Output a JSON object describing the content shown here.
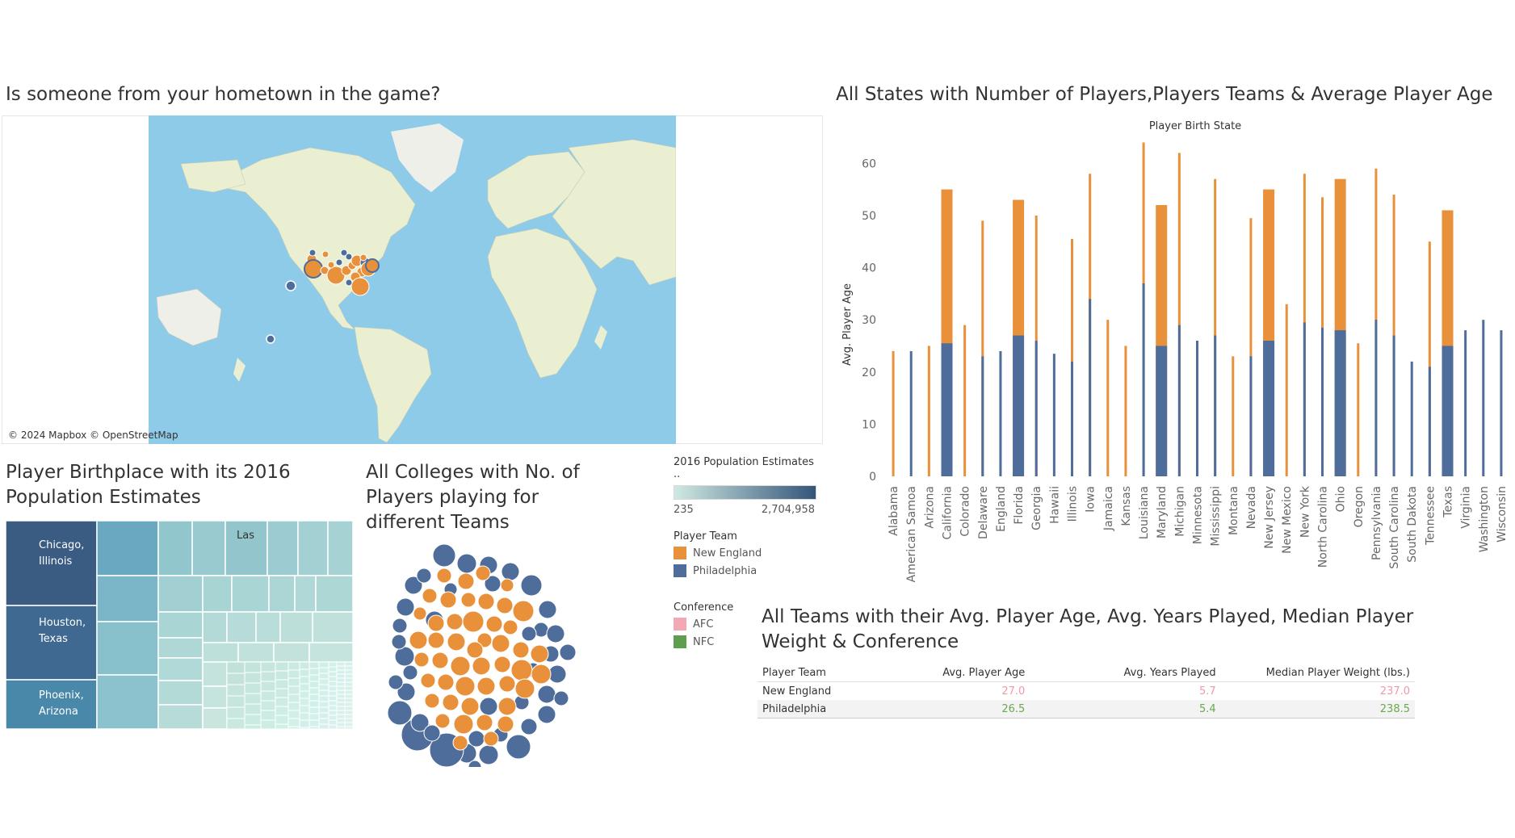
{
  "map_section": {
    "title": "Is someone from your hometown in the game?",
    "credit": "© 2024 Mapbox © OpenStreetMap",
    "colors": {
      "ocean": "#8ecbe9",
      "land": "#e9efd0",
      "ice": "#efefea"
    }
  },
  "bar_section": {
    "title": "All States with Number of Players,Players Teams & Average Player Age"
  },
  "chart_data": {
    "type": "bar",
    "title": "Player Birth State",
    "ylabel": "Avg. Player Age",
    "ylim": [
      0,
      65
    ],
    "yticks": [
      0,
      10,
      20,
      30,
      40,
      50,
      60
    ],
    "categories": [
      "Alabama",
      "American Samoa",
      "Arizona",
      "California",
      "Colorado",
      "Delaware",
      "England",
      "Florida",
      "Georgia",
      "Hawaii",
      "Illinois",
      "Iowa",
      "Jamaica",
      "Kansas",
      "Louisiana",
      "Maryland",
      "Michigan",
      "Minnesota",
      "Mississippi",
      "Montana",
      "Nevada",
      "New Jersey",
      "New Mexico",
      "New York",
      "North Carolina",
      "Ohio",
      "Oregon",
      "Pennsylvania",
      "South Carolina",
      "South Dakota",
      "Tennessee",
      "Texas",
      "Virginia",
      "Washington",
      "Wisconsin"
    ],
    "series": [
      {
        "name": "New England",
        "color": "#e8913a",
        "values": [
          24,
          null,
          25,
          55,
          29,
          49,
          null,
          53,
          50,
          null,
          45.5,
          58,
          30,
          25,
          64,
          52,
          62,
          null,
          57,
          23,
          49.5,
          55,
          33,
          58,
          53.5,
          57,
          25.5,
          59,
          54,
          null,
          45,
          51,
          null,
          null,
          null
        ]
      },
      {
        "name": "Philadelphia",
        "color": "#4e6d9b",
        "values": [
          null,
          24,
          null,
          25.5,
          null,
          23,
          24,
          27,
          26,
          23.5,
          22,
          34,
          null,
          null,
          37,
          25,
          29,
          26,
          27,
          null,
          23,
          26,
          null,
          29.5,
          28.5,
          28,
          null,
          30,
          27,
          22,
          21,
          25,
          28,
          30,
          28
        ]
      }
    ],
    "thick": [
      "California",
      "Florida",
      "New Jersey",
      "Ohio",
      "Texas",
      "Maryland"
    ]
  },
  "treemap_section": {
    "title_line1": "Player Birthplace with its 2016",
    "title_line2": "Population Estimates",
    "labels": {
      "chicago": "Chicago,\nIllinois",
      "houston": "Houston,\nTexas",
      "phoenix": "Phoenix,\nArizona",
      "las": "Las"
    }
  },
  "bubble_section": {
    "title_line1": "All Colleges with No. of",
    "title_line2": "Players playing for",
    "title_line3": "different Teams"
  },
  "legends": {
    "population": {
      "title": "2016 Population Estimates ..",
      "min": "235",
      "max": "2,704,958",
      "color_start": "#cfe9e2",
      "color_end": "#34557a"
    },
    "player_team": {
      "title": "Player Team",
      "items": [
        {
          "label": "New England",
          "color": "#e8913a"
        },
        {
          "label": "Philadelphia",
          "color": "#4e6d9b"
        }
      ]
    },
    "conference": {
      "title": "Conference",
      "items": [
        {
          "label": "AFC",
          "color": "#f4a8b6"
        },
        {
          "label": "NFC",
          "color": "#5f9e4e"
        }
      ]
    }
  },
  "table_section": {
    "title_line1": "All Teams with their Avg. Player Age, Avg. Years Played, Median Player",
    "title_line2": "Weight & Conference",
    "headers": [
      "Player Team",
      "Avg. Player Age",
      "Avg. Years Played",
      "Median Player Weight (lbs.)"
    ],
    "rows": [
      {
        "team": "New England",
        "age": "27.0",
        "years": "5.7",
        "weight": "237.0",
        "color": "#ef9aaa"
      },
      {
        "team": "Philadelphia",
        "age": "26.5",
        "years": "5.4",
        "weight": "238.5",
        "color": "#6aa84f"
      }
    ]
  }
}
